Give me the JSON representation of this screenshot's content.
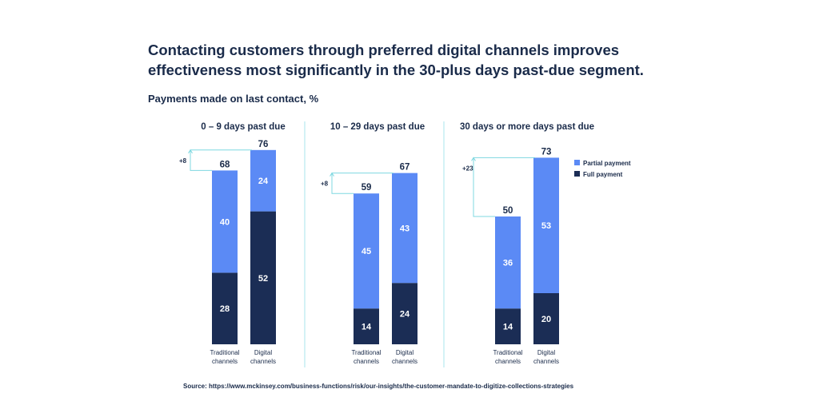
{
  "colors": {
    "partial": "#5b8af5",
    "full": "#1b2d55",
    "text": "#1a2b4a",
    "divider": "#a8e6ec",
    "bracket": "#7fd8e0"
  },
  "title": "Contacting customers through preferred digital channels improves effectiveness most significantly in the 30-plus days past-due segment.",
  "subtitle": "Payments made on last contact, %",
  "source": "Source: https://www.mckinsey.com/business-functions/risk/our-insights/the-customer-mandate-to-digitize-collections-strategies",
  "chart_data": {
    "type": "bar",
    "stacked": true,
    "unit": "%",
    "legend": {
      "position": "right",
      "items": [
        "Partial payment",
        "Full payment"
      ]
    },
    "panels": [
      {
        "title": "0 – 9 days past due",
        "delta_label": "+8",
        "categories": [
          [
            "Traditional",
            "channels"
          ],
          [
            "Digital",
            "channels"
          ]
        ],
        "series": [
          {
            "name": "Full payment",
            "values": [
              28,
              52
            ]
          },
          {
            "name": "Partial payment",
            "values": [
              40,
              24
            ]
          }
        ],
        "totals": [
          68,
          76
        ]
      },
      {
        "title": "10 – 29 days past due",
        "delta_label": "+8",
        "categories": [
          [
            "Traditional",
            "channels"
          ],
          [
            "Digital",
            "channels"
          ]
        ],
        "series": [
          {
            "name": "Full payment",
            "values": [
              14,
              24
            ]
          },
          {
            "name": "Partial payment",
            "values": [
              45,
              43
            ]
          }
        ],
        "totals": [
          59,
          67
        ]
      },
      {
        "title": "30 days or more days past due",
        "delta_label": "+23",
        "categories": [
          [
            "Traditional",
            "channels"
          ],
          [
            "Digital",
            "channels"
          ]
        ],
        "series": [
          {
            "name": "Full payment",
            "values": [
              14,
              20
            ]
          },
          {
            "name": "Partial payment",
            "values": [
              36,
              53
            ]
          }
        ],
        "totals": [
          50,
          73
        ]
      }
    ]
  }
}
